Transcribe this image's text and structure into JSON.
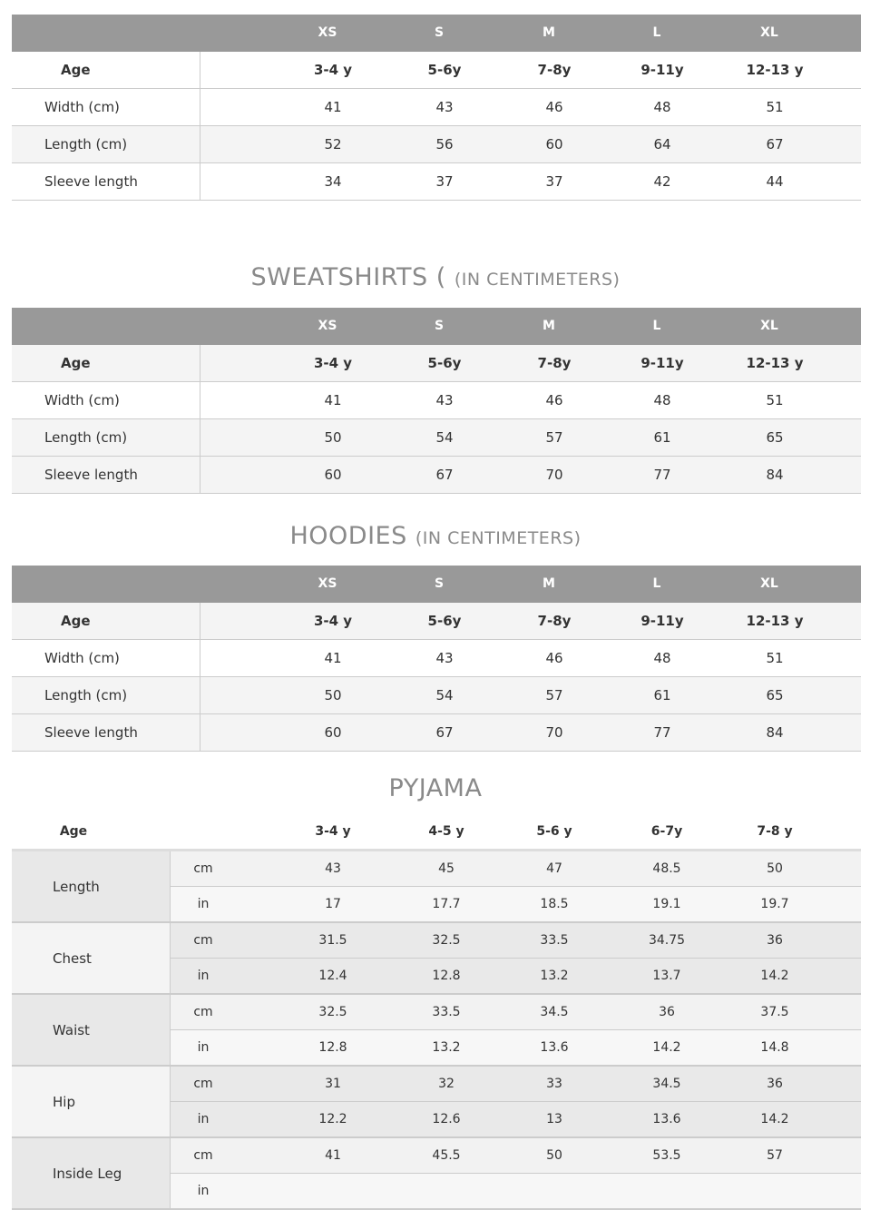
{
  "sizes": [
    "XS",
    "S",
    "M",
    "L",
    "XL"
  ],
  "tables": [
    {
      "title": "",
      "subtitle": "",
      "age_label": "Age",
      "ages": [
        "3-4 y",
        "5-6y",
        "7-8y",
        "9-11y",
        "12-13 y"
      ],
      "rows": [
        {
          "label": "Width (cm)",
          "values": [
            "41",
            "43",
            "46",
            "48",
            "51"
          ]
        },
        {
          "label": "Length (cm)",
          "values": [
            "52",
            "56",
            "60",
            "64",
            "67"
          ]
        },
        {
          "label": "Sleeve length",
          "values": [
            "34",
            "37",
            "37",
            "42",
            "44"
          ]
        }
      ]
    },
    {
      "title": "SWEATSHIRTS (",
      "subtitle": "(IN CENTIMETERS)",
      "age_label": "Age",
      "ages": [
        "3-4 y",
        "5-6y",
        "7-8y",
        "9-11y",
        "12-13 y"
      ],
      "rows": [
        {
          "label": "Width (cm)",
          "values": [
            "41",
            "43",
            "46",
            "48",
            "51"
          ]
        },
        {
          "label": "Length (cm)",
          "values": [
            "50",
            "54",
            "57",
            "61",
            "65"
          ]
        },
        {
          "label": "Sleeve length",
          "values": [
            "60",
            "67",
            "70",
            "77",
            "84"
          ]
        }
      ]
    },
    {
      "title": "HOODIES",
      "subtitle": "(IN CENTIMETERS)",
      "age_label": "Age",
      "ages": [
        "3-4 y",
        "5-6y",
        "7-8y",
        "9-11y",
        "12-13 y"
      ],
      "rows": [
        {
          "label": "Width (cm)",
          "values": [
            "41",
            "43",
            "46",
            "48",
            "51"
          ]
        },
        {
          "label": "Length (cm)",
          "values": [
            "50",
            "54",
            "57",
            "61",
            "65"
          ]
        },
        {
          "label": "Sleeve length",
          "values": [
            "60",
            "67",
            "70",
            "77",
            "84"
          ]
        }
      ]
    }
  ],
  "pyjama": {
    "title": "PYJAMA",
    "age_label": "Age",
    "ages": [
      "3-4 y",
      "4-5 y",
      "5-6 y",
      "6-7y",
      "7-8 y"
    ],
    "groups": [
      {
        "label": "Length",
        "rows": [
          {
            "unit": "cm",
            "values": [
              "43",
              "45",
              "47",
              "48.5",
              "50"
            ]
          },
          {
            "unit": "in",
            "values": [
              "17",
              "17.7",
              "18.5",
              "19.1",
              "19.7"
            ]
          }
        ]
      },
      {
        "label": "Chest",
        "rows": [
          {
            "unit": "cm",
            "values": [
              "31.5",
              "32.5",
              "33.5",
              "34.75",
              "36"
            ]
          },
          {
            "unit": "in",
            "values": [
              "12.4",
              "12.8",
              "13.2",
              "13.7",
              "14.2"
            ]
          }
        ]
      },
      {
        "label": "Waist",
        "rows": [
          {
            "unit": "cm",
            "values": [
              "32.5",
              "33.5",
              "34.5",
              "36",
              "37.5"
            ]
          },
          {
            "unit": "in",
            "values": [
              "12.8",
              "13.2",
              "13.6",
              "14.2",
              "14.8"
            ]
          }
        ]
      },
      {
        "label": "Hip",
        "rows": [
          {
            "unit": "cm",
            "values": [
              "31",
              "32",
              "33",
              "34.5",
              "36"
            ]
          },
          {
            "unit": "in",
            "values": [
              "12.2",
              "12.6",
              "13",
              "13.6",
              "14.2"
            ]
          }
        ]
      },
      {
        "label": "Inside Leg",
        "rows": [
          {
            "unit": "cm",
            "values": [
              "41",
              "45.5",
              "50",
              "53.5",
              "57"
            ]
          },
          {
            "unit": "in",
            "values": [
              "",
              "",
              "",
              "",
              ""
            ]
          }
        ]
      }
    ]
  },
  "colors": {
    "header_bg": "#999999",
    "row_alt": "#f4f4f4",
    "title": "#8a8a8a"
  }
}
